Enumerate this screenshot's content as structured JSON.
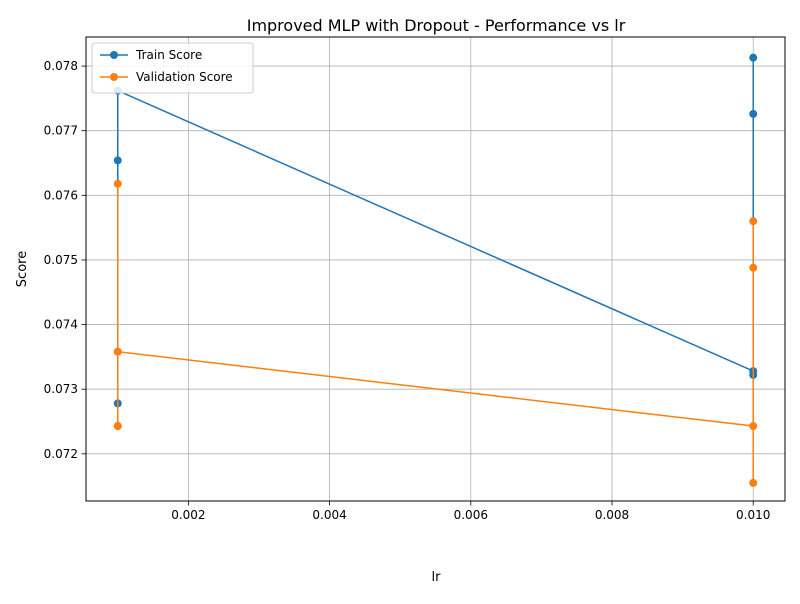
{
  "chart_data": {
    "type": "line",
    "title": "Improved MLP with Dropout - Performance vs lr",
    "xlabel": "lr",
    "ylabel": "Score",
    "xlim": [
      0.00055,
      0.01045
    ],
    "ylim": [
      0.07127,
      0.07845
    ],
    "xticks": [
      0.002,
      0.004,
      0.006,
      0.008,
      0.01
    ],
    "xtick_labels": [
      "0.002",
      "0.004",
      "0.006",
      "0.008",
      "0.010"
    ],
    "yticks": [
      0.072,
      0.073,
      0.074,
      0.075,
      0.076,
      0.077,
      0.078
    ],
    "ytick_labels": [
      "0.072",
      "0.073",
      "0.074",
      "0.075",
      "0.076",
      "0.077",
      "0.078"
    ],
    "grid": true,
    "legend_position": "upper-left",
    "series": [
      {
        "name": "Train Score",
        "color": "#1f77b4",
        "x": [
          0.001,
          0.001,
          0.001,
          0.001,
          0.01,
          0.01,
          0.01,
          0.01
        ],
        "y": [
          0.07278,
          0.07654,
          0.07358,
          0.07762,
          0.07328,
          0.07322,
          0.07726,
          0.07813
        ]
      },
      {
        "name": "Validation Score",
        "color": "#ff7f0e",
        "x": [
          0.001,
          0.001,
          0.001,
          0.001,
          0.01,
          0.01,
          0.01,
          0.01
        ],
        "y": [
          0.07243,
          0.07618,
          0.07243,
          0.07358,
          0.07243,
          0.07155,
          0.0756,
          0.07488
        ]
      }
    ]
  }
}
